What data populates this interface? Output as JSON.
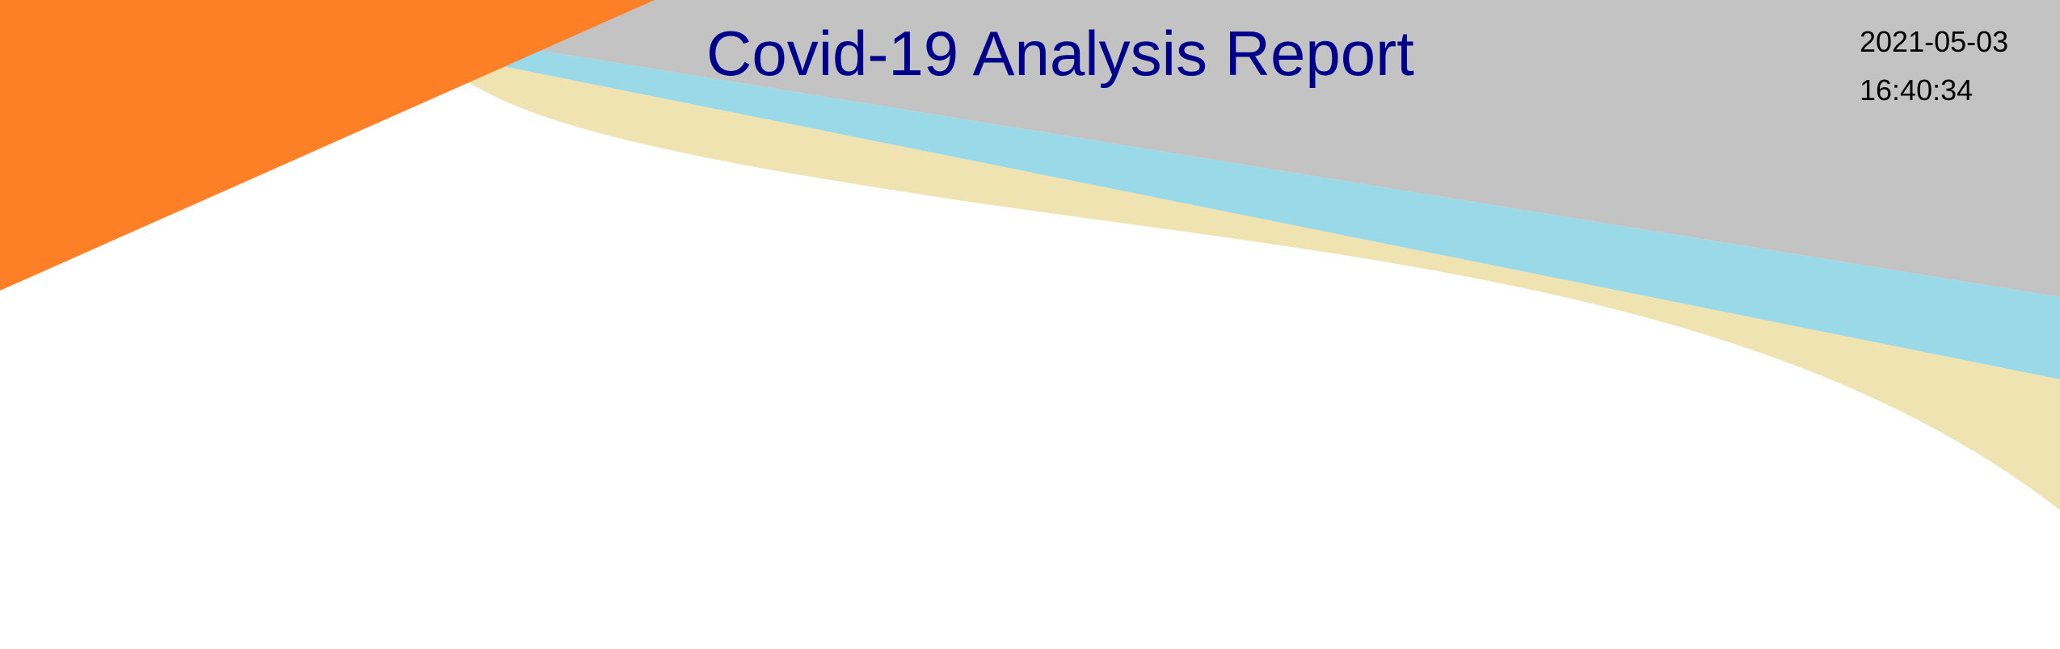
{
  "report": {
    "title": "Covid-19 Analysis Report",
    "date": "2021-05-03",
    "time": "16:40:34"
  },
  "theme": {
    "title_color": "#00008b",
    "gray_band": "#c3c3c3",
    "blue_band": "#9ad9e8",
    "tan_band": "#eee3b1",
    "orange_triangle": "#fe8026"
  }
}
